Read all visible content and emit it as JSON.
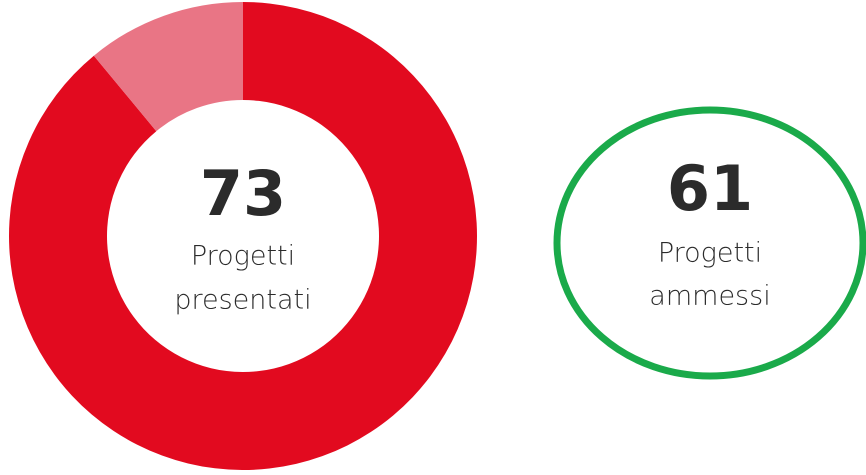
{
  "chart_data": {
    "type": "donut",
    "values": [
      89,
      11
    ],
    "colors": [
      "#e20a1f",
      "#e97585"
    ],
    "center_value": 73,
    "center_label": [
      "Progetti",
      "presentati"
    ]
  },
  "badge": {
    "value": 61,
    "label": [
      "Progetti",
      "ammessi"
    ],
    "color": "#1aaa4a"
  }
}
